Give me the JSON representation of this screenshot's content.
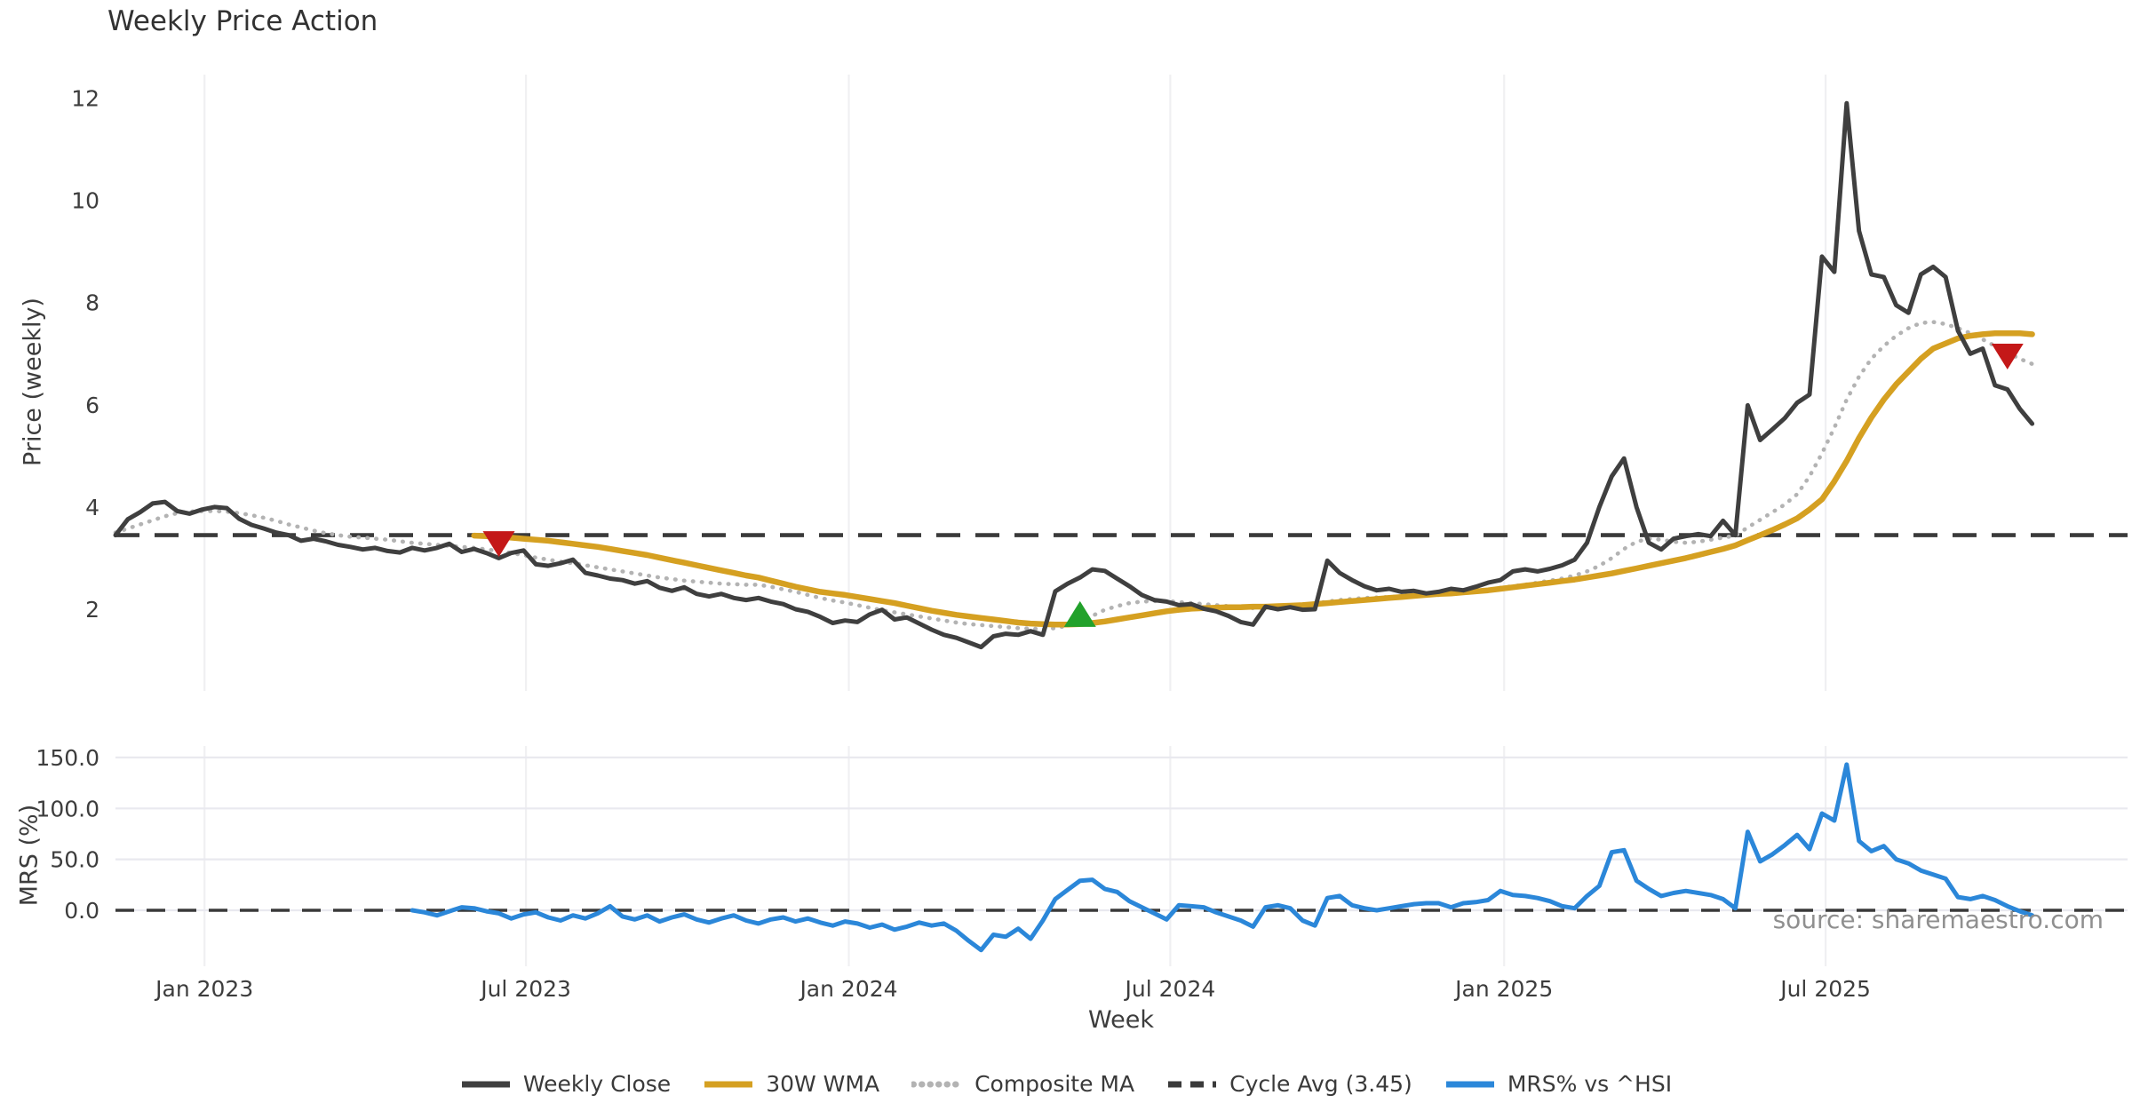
{
  "title": "Weekly Price Action",
  "source_text": "source: sharemaestro.com",
  "xlabel": "Week",
  "colors": {
    "close": "#3f3f3f",
    "wma": "#d5a021",
    "composite": "#b3b3b3",
    "cycle": "#3a3a3a",
    "mrs": "#2b87d9",
    "buy": "#22a12b",
    "sell": "#c41818",
    "grid_vertical": "#f0f0f2",
    "grid_horizontal": "#e9e9ef",
    "tick_text": "#3d3d3d",
    "source_text_color": "#8f8f8f"
  },
  "legend": [
    {
      "label": "Weekly Close",
      "color": "#3f3f3f",
      "style": "solid"
    },
    {
      "label": "30W WMA",
      "color": "#d5a021",
      "style": "solid"
    },
    {
      "label": "Composite MA",
      "color": "#b3b3b3",
      "style": "dotted"
    },
    {
      "label": "Cycle Avg (3.45)",
      "color": "#3a3a3a",
      "style": "dashed"
    },
    {
      "label": "MRS% vs ^HSI",
      "color": "#2b87d9",
      "style": "solid"
    }
  ],
  "chart_data": {
    "type": "line",
    "title": "Weekly Price Action",
    "xlabel": "Week",
    "x_start_date": "2022-11-14",
    "x_interval": "weekly",
    "x_tick_labels": [
      {
        "label": "Jan 2023",
        "week": 7.2
      },
      {
        "label": "Jul 2023",
        "week": 33.2
      },
      {
        "label": "Jan 2024",
        "week": 59.3
      },
      {
        "label": "Jul 2024",
        "week": 85.3
      },
      {
        "label": "Jan 2025",
        "week": 112.3
      },
      {
        "label": "Jul 2025",
        "week": 138.3
      }
    ],
    "panels": [
      {
        "name": "price",
        "ylabel": "Price (weekly)",
        "ylim": [
          0.4,
          12.45
        ],
        "yticks": [
          2,
          4,
          6,
          8,
          10,
          12
        ],
        "ytick_labels": [
          "2",
          "4",
          "6",
          "8",
          "10",
          "12"
        ],
        "grid": "vertical-only",
        "cycle_avg": 3.45,
        "series": [
          {
            "name": "Weekly Close",
            "style": "solid",
            "color": "#3f3f3f",
            "values": [
              3.45,
              3.76,
              3.9,
              4.07,
              4.1,
              3.92,
              3.87,
              3.95,
              4.0,
              3.98,
              3.77,
              3.65,
              3.58,
              3.5,
              3.45,
              3.34,
              3.38,
              3.33,
              3.26,
              3.22,
              3.17,
              3.2,
              3.14,
              3.11,
              3.2,
              3.15,
              3.2,
              3.28,
              3.12,
              3.18,
              3.1,
              3.0,
              3.1,
              3.15,
              2.88,
              2.85,
              2.9,
              2.97,
              2.71,
              2.66,
              2.6,
              2.57,
              2.5,
              2.55,
              2.42,
              2.36,
              2.43,
              2.3,
              2.25,
              2.3,
              2.22,
              2.18,
              2.22,
              2.15,
              2.1,
              2.0,
              1.95,
              1.85,
              1.73,
              1.78,
              1.75,
              1.9,
              1.99,
              1.8,
              1.84,
              1.72,
              1.6,
              1.5,
              1.44,
              1.35,
              1.26,
              1.47,
              1.52,
              1.5,
              1.57,
              1.5,
              2.35,
              2.5,
              2.62,
              2.78,
              2.75,
              2.6,
              2.45,
              2.28,
              2.18,
              2.15,
              2.08,
              2.1,
              2.01,
              1.96,
              1.87,
              1.75,
              1.7,
              2.05,
              2.0,
              2.04,
              1.99,
              2.0,
              2.95,
              2.71,
              2.57,
              2.45,
              2.37,
              2.4,
              2.34,
              2.36,
              2.31,
              2.34,
              2.4,
              2.37,
              2.44,
              2.52,
              2.57,
              2.74,
              2.78,
              2.74,
              2.79,
              2.86,
              2.97,
              3.3,
              4.0,
              4.6,
              4.95,
              4.0,
              3.3,
              3.17,
              3.38,
              3.43,
              3.47,
              3.43,
              3.73,
              3.45,
              5.99,
              5.31,
              5.52,
              5.74,
              6.04,
              6.2,
              8.9,
              8.6,
              11.9,
              9.4,
              8.55,
              8.5,
              7.95,
              7.8,
              8.55,
              8.7,
              8.5,
              7.45,
              7.0,
              7.1,
              6.38,
              6.3,
              5.92,
              5.63
            ]
          },
          {
            "name": "30W WMA",
            "style": "solid",
            "color": "#d5a021",
            "values": [
              null,
              null,
              null,
              null,
              null,
              null,
              null,
              null,
              null,
              null,
              null,
              null,
              null,
              null,
              null,
              null,
              null,
              null,
              null,
              null,
              null,
              null,
              null,
              null,
              null,
              null,
              null,
              null,
              null,
              3.44,
              3.43,
              3.42,
              3.4,
              3.38,
              3.36,
              3.34,
              3.31,
              3.28,
              3.25,
              3.22,
              3.18,
              3.14,
              3.1,
              3.06,
              3.01,
              2.96,
              2.91,
              2.86,
              2.81,
              2.76,
              2.71,
              2.66,
              2.62,
              2.56,
              2.5,
              2.44,
              2.39,
              2.34,
              2.31,
              2.28,
              2.24,
              2.2,
              2.16,
              2.12,
              2.07,
              2.02,
              1.97,
              1.93,
              1.89,
              1.86,
              1.83,
              1.8,
              1.77,
              1.74,
              1.72,
              1.71,
              1.7,
              1.7,
              1.71,
              1.73,
              1.76,
              1.8,
              1.84,
              1.88,
              1.92,
              1.96,
              1.99,
              2.01,
              2.02,
              2.03,
              2.04,
              2.04,
              2.05,
              2.05,
              2.06,
              2.07,
              2.08,
              2.1,
              2.12,
              2.14,
              2.16,
              2.18,
              2.2,
              2.22,
              2.24,
              2.26,
              2.28,
              2.3,
              2.31,
              2.33,
              2.35,
              2.37,
              2.4,
              2.43,
              2.46,
              2.49,
              2.52,
              2.55,
              2.58,
              2.62,
              2.66,
              2.7,
              2.75,
              2.8,
              2.85,
              2.9,
              2.95,
              3.0,
              3.06,
              3.12,
              3.18,
              3.25,
              3.35,
              3.45,
              3.55,
              3.66,
              3.78,
              3.95,
              4.15,
              4.5,
              4.9,
              5.35,
              5.75,
              6.1,
              6.4,
              6.65,
              6.9,
              7.1,
              7.2,
              7.3,
              7.35,
              7.38,
              7.4,
              7.4,
              7.4,
              7.38
            ]
          },
          {
            "name": "Composite MA",
            "style": "dotted",
            "color": "#b3b3b3",
            "values": [
              3.5,
              3.58,
              3.66,
              3.74,
              3.82,
              3.88,
              3.91,
              3.92,
              3.92,
              3.91,
              3.88,
              3.84,
              3.79,
              3.73,
              3.66,
              3.6,
              3.54,
              3.49,
              3.45,
              3.42,
              3.4,
              3.38,
              3.36,
              3.33,
              3.3,
              3.28,
              3.26,
              3.24,
              3.22,
              3.2,
              3.17,
              3.14,
              3.1,
              3.06,
              3.01,
              2.97,
              2.93,
              2.9,
              2.86,
              2.82,
              2.78,
              2.74,
              2.7,
              2.66,
              2.62,
              2.59,
              2.56,
              2.54,
              2.52,
              2.5,
              2.49,
              2.48,
              2.48,
              2.44,
              2.39,
              2.34,
              2.28,
              2.22,
              2.17,
              2.13,
              2.08,
              2.03,
              1.98,
              1.94,
              1.9,
              1.86,
              1.82,
              1.78,
              1.74,
              1.71,
              1.69,
              1.67,
              1.65,
              1.63,
              1.62,
              1.61,
              1.63,
              1.68,
              1.76,
              1.87,
              1.99,
              2.06,
              2.12,
              2.15,
              2.16,
              2.16,
              2.14,
              2.12,
              2.1,
              2.08,
              2.06,
              2.04,
              2.02,
              2.02,
              2.03,
              2.05,
              2.08,
              2.11,
              2.15,
              2.18,
              2.2,
              2.22,
              2.23,
              2.24,
              2.25,
              2.26,
              2.27,
              2.28,
              2.3,
              2.32,
              2.34,
              2.36,
              2.42,
              2.45,
              2.48,
              2.52,
              2.56,
              2.6,
              2.66,
              2.74,
              2.85,
              3.0,
              3.18,
              3.32,
              3.38,
              3.36,
              3.32,
              3.3,
              3.32,
              3.36,
              3.4,
              3.44,
              3.6,
              3.75,
              3.9,
              4.05,
              4.25,
              4.6,
              5.05,
              5.55,
              6.1,
              6.55,
              6.9,
              7.15,
              7.35,
              7.5,
              7.6,
              7.62,
              7.58,
              7.5,
              7.4,
              7.28,
              7.15,
              7.02,
              6.9,
              6.8
            ]
          },
          {
            "name": "Cycle Avg (3.45)",
            "style": "dashed",
            "color": "#3a3a3a",
            "value": 3.45
          }
        ],
        "sell_signals": [
          {
            "week": 31,
            "price": 3.3
          },
          {
            "week": 153,
            "price": 6.97
          }
        ],
        "buy_signals": [
          {
            "week": 78,
            "price": 1.88
          }
        ]
      },
      {
        "name": "mrs",
        "ylabel": "MRS (%)",
        "ylim": [
          -55,
          162
        ],
        "yticks": [
          0,
          50,
          100,
          150
        ],
        "ytick_labels": [
          "0.0",
          "50.0",
          "100.0",
          "150.0"
        ],
        "grid": "both",
        "zero_line": 0,
        "series": [
          {
            "name": "MRS% vs ^HSI",
            "style": "solid",
            "color": "#2b87d9",
            "values": [
              null,
              null,
              null,
              null,
              null,
              null,
              null,
              null,
              null,
              null,
              null,
              null,
              null,
              null,
              null,
              null,
              null,
              null,
              null,
              null,
              null,
              null,
              null,
              null,
              0,
              -2,
              -5,
              -1,
              3,
              2,
              -1,
              -3,
              -8,
              -4,
              -2,
              -7,
              -10,
              -5,
              -8,
              -3,
              4,
              -6,
              -9,
              -5,
              -11,
              -7,
              -4,
              -9,
              -12,
              -8,
              -5,
              -10,
              -13,
              -9,
              -7,
              -11,
              -8,
              -12,
              -15,
              -11,
              -13,
              -17,
              -14,
              -19,
              -16,
              -12,
              -15,
              -13,
              -20,
              -30,
              -39,
              -24,
              -26,
              -18,
              -28,
              -10,
              11,
              20,
              29,
              30,
              21,
              18,
              9,
              3,
              -3,
              -9,
              5,
              4,
              3,
              -2,
              -6,
              -10,
              -16,
              3,
              5,
              2,
              -10,
              -15,
              12,
              14,
              5,
              2,
              0,
              2,
              4,
              6,
              7,
              7,
              3,
              7,
              8,
              10,
              19,
              15,
              14,
              12,
              9,
              4,
              2,
              14,
              24,
              57,
              59,
              29,
              21,
              14,
              17,
              19,
              17,
              15,
              11,
              2,
              77,
              48,
              55,
              64,
              74,
              60,
              95,
              88,
              143,
              68,
              58,
              63,
              50,
              46,
              39,
              35,
              31,
              13,
              11,
              14,
              10,
              4,
              -1,
              -5
            ]
          },
          {
            "name": "Zero line",
            "style": "dashed",
            "color": "#3a3a3a",
            "value": 0
          }
        ]
      }
    ]
  }
}
